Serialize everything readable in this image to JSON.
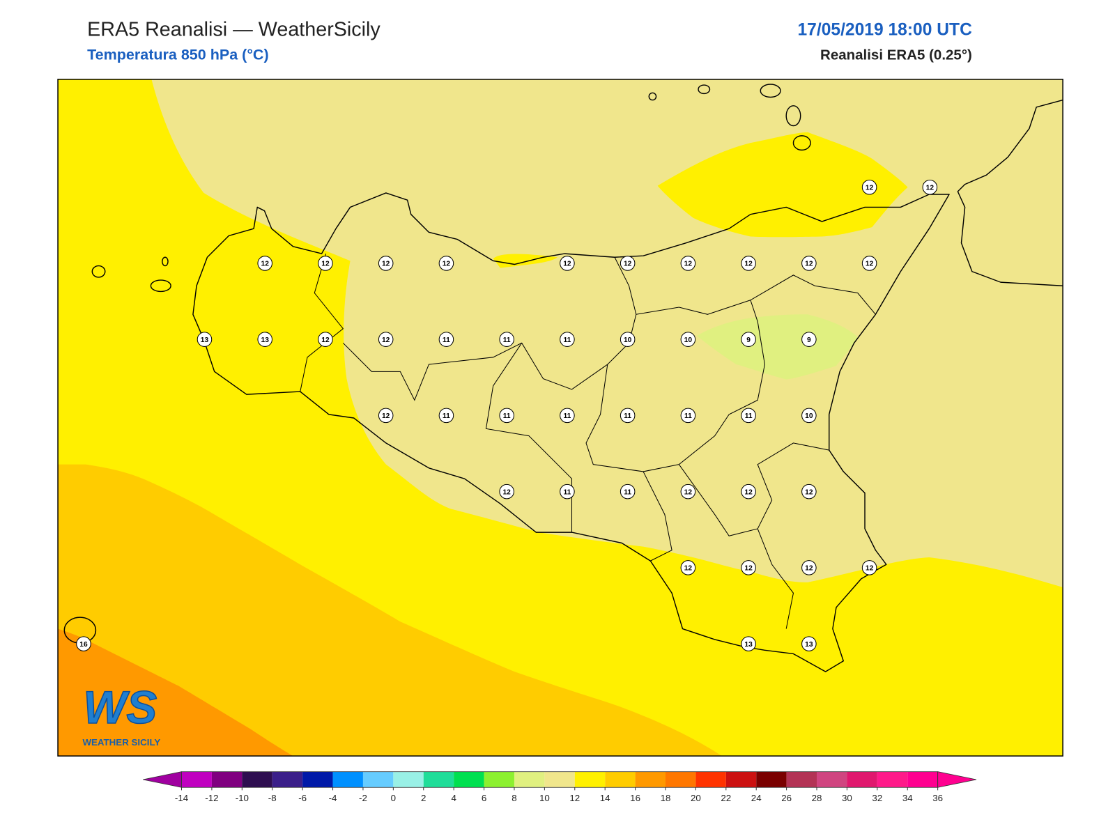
{
  "header": {
    "title": "ERA5 Reanalisi — WeatherSicily",
    "subtitle": "Temperatura 850 hPa (°C)",
    "datetime": "17/05/2019 18:00 UTC",
    "source": "Reanalisi ERA5 (0.25°)"
  },
  "map": {
    "grid": {
      "rows": [
        [
          null,
          null,
          null,
          null,
          null,
          null,
          null,
          null,
          null,
          null,
          null,
          null,
          null,
          12,
          12
        ],
        [
          null,
          null,
          null,
          12,
          12,
          12,
          12,
          null,
          12,
          12,
          12,
          12,
          12,
          12,
          null
        ],
        [
          null,
          null,
          13,
          13,
          12,
          12,
          11,
          11,
          11,
          10,
          10,
          9,
          9,
          null,
          null
        ],
        [
          null,
          null,
          null,
          null,
          null,
          12,
          11,
          11,
          11,
          11,
          11,
          11,
          10,
          null,
          null
        ],
        [
          null,
          null,
          null,
          null,
          null,
          null,
          null,
          12,
          11,
          11,
          12,
          12,
          12,
          null,
          null
        ],
        [
          null,
          null,
          null,
          null,
          null,
          null,
          null,
          null,
          null,
          null,
          12,
          12,
          12,
          12,
          null
        ],
        [
          16,
          null,
          null,
          null,
          null,
          null,
          null,
          null,
          null,
          null,
          null,
          13,
          13,
          null,
          null
        ]
      ]
    }
  },
  "logo": {
    "mark": "WS",
    "text": "WEATHER SICILY"
  },
  "colorbar": {
    "ticks": [
      -14,
      -12,
      -10,
      -8,
      -6,
      -4,
      -2,
      0,
      2,
      4,
      6,
      8,
      10,
      12,
      14,
      16,
      18,
      20,
      22,
      24,
      26,
      28,
      30,
      32,
      34,
      36
    ],
    "colors": [
      "#a000a0",
      "#c000c0",
      "#800080",
      "#2e0e50",
      "#3b1f8a",
      "#0019a8",
      "#0090ff",
      "#66ccff",
      "#99f0e6",
      "#20dd99",
      "#00e050",
      "#8cf030",
      "#e0f080",
      "#f0e68c",
      "#fff000",
      "#ffcc00",
      "#ff9900",
      "#ff7700",
      "#ff3300",
      "#cc1111",
      "#7a0000",
      "#b33355",
      "#d04580",
      "#e0186e",
      "#ff1a8a",
      "#ff0090"
    ]
  }
}
